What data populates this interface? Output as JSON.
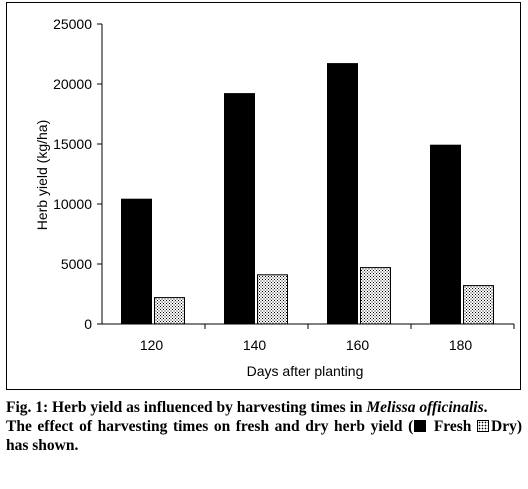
{
  "chart_data": {
    "type": "bar",
    "categories": [
      "120",
      "140",
      "160",
      "180"
    ],
    "series": [
      {
        "key": "fresh",
        "values": [
          10400,
          19200,
          21700,
          14900
        ],
        "color": "#000000"
      },
      {
        "key": "dry",
        "values": [
          2200,
          4100,
          4700,
          3200
        ],
        "pattern": "dotted"
      }
    ],
    "xlabel": "Days after planting",
    "ylabel": "Herb yield (kg/ha)",
    "ylim": [
      0,
      25000
    ],
    "yticks": [
      "0",
      "5000",
      "10000",
      "15000",
      "20000",
      "25000"
    ],
    "grid": false
  },
  "caption": {
    "fig_prefix": "Fig. 1: Herb yield as influenced by harvesting times in ",
    "species": "Melissa officinalis",
    "fig_suffix": ".",
    "desc_before": "The effect of harvesting times on fresh and dry herb yield (",
    "legend_fresh": "Fresh",
    "legend_dry": "Dry",
    "desc_after": ") has shown."
  }
}
